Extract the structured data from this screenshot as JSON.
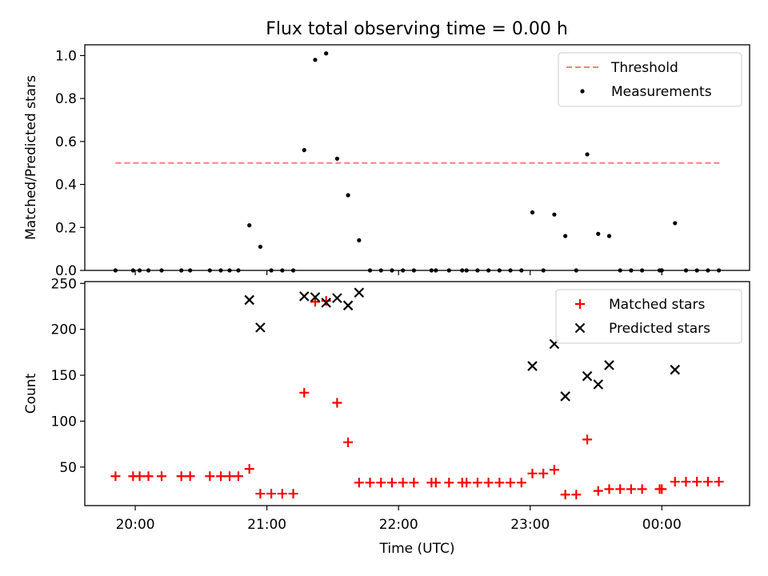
{
  "figure": {
    "title": "Flux total observing time = 0.00 h"
  },
  "chart_data": [
    {
      "type": "scatter",
      "ylabel": "Matched/Predicted stars",
      "xlabel": "",
      "xlim": [
        "19:37",
        "00:40"
      ],
      "ylim": [
        0,
        1.05
      ],
      "yticks": [
        0.0,
        0.2,
        0.4,
        0.6,
        0.8,
        1.0
      ],
      "ytick_labels": [
        "0.0",
        "0.2",
        "0.4",
        "0.6",
        "0.8",
        "1.0"
      ],
      "xticks": [
        "20:00",
        "21:00",
        "22:00",
        "23:00",
        "00:00"
      ],
      "grid": false,
      "legend_position": "upper right",
      "series": [
        {
          "name": "Threshold",
          "style": "dashed-line",
          "color": "#ff7f7f",
          "points": [
            [
              "19:51",
              0.5
            ],
            [
              "00:27",
              0.5
            ]
          ]
        },
        {
          "name": "Measurements",
          "style": "dot",
          "color": "#000000",
          "points": [
            [
              "19:51",
              0.0
            ],
            [
              "19:59",
              0.0
            ],
            [
              "20:02",
              0.0
            ],
            [
              "20:06",
              0.0
            ],
            [
              "20:12",
              0.0
            ],
            [
              "20:21",
              0.0
            ],
            [
              "20:25",
              0.0
            ],
            [
              "20:34",
              0.0
            ],
            [
              "20:39",
              0.0
            ],
            [
              "20:43",
              0.0
            ],
            [
              "20:47",
              0.0
            ],
            [
              "20:52",
              0.21
            ],
            [
              "20:57",
              0.11
            ],
            [
              "21:02",
              0.0
            ],
            [
              "21:07",
              0.0
            ],
            [
              "21:12",
              0.0
            ],
            [
              "21:17",
              0.56
            ],
            [
              "21:22",
              0.98
            ],
            [
              "21:27",
              1.01
            ],
            [
              "21:32",
              0.52
            ],
            [
              "21:37",
              0.35
            ],
            [
              "21:42",
              0.14
            ],
            [
              "21:47",
              0.0
            ],
            [
              "21:52",
              0.0
            ],
            [
              "21:57",
              0.0
            ],
            [
              "22:02",
              0.0
            ],
            [
              "22:07",
              0.0
            ],
            [
              "22:15",
              0.0
            ],
            [
              "22:17",
              0.0
            ],
            [
              "22:23",
              0.0
            ],
            [
              "22:29",
              0.0
            ],
            [
              "22:31",
              0.0
            ],
            [
              "22:36",
              0.0
            ],
            [
              "22:41",
              0.0
            ],
            [
              "22:46",
              0.0
            ],
            [
              "22:51",
              0.0
            ],
            [
              "22:56",
              0.0
            ],
            [
              "23:01",
              0.27
            ],
            [
              "23:06",
              0.0
            ],
            [
              "23:11",
              0.26
            ],
            [
              "23:16",
              0.16
            ],
            [
              "23:21",
              0.0
            ],
            [
              "23:26",
              0.54
            ],
            [
              "23:31",
              0.17
            ],
            [
              "23:36",
              0.16
            ],
            [
              "23:41",
              0.0
            ],
            [
              "23:46",
              0.0
            ],
            [
              "23:51",
              0.0
            ],
            [
              "23:59",
              0.0
            ],
            [
              "00:00",
              0.0
            ],
            [
              "00:06",
              0.22
            ],
            [
              "00:11",
              0.0
            ],
            [
              "00:16",
              0.0
            ],
            [
              "00:21",
              0.0
            ],
            [
              "00:26",
              0.0
            ]
          ]
        }
      ]
    },
    {
      "type": "scatter",
      "ylabel": "Count",
      "xlabel": "Time (UTC)",
      "xlim": [
        "19:37",
        "00:40"
      ],
      "ylim": [
        8,
        252
      ],
      "yticks": [
        50,
        100,
        150,
        200,
        250
      ],
      "ytick_labels": [
        "50",
        "100",
        "150",
        "200",
        "250"
      ],
      "xticks": [
        "20:00",
        "21:00",
        "22:00",
        "23:00",
        "00:00"
      ],
      "grid": false,
      "legend_position": "upper right",
      "series": [
        {
          "name": "Matched stars",
          "marker": "plus",
          "color": "#ff0000",
          "points": [
            [
              "19:51",
              40
            ],
            [
              "19:59",
              40
            ],
            [
              "20:02",
              40
            ],
            [
              "20:06",
              40
            ],
            [
              "20:12",
              40
            ],
            [
              "20:21",
              40
            ],
            [
              "20:25",
              40
            ],
            [
              "20:34",
              40
            ],
            [
              "20:39",
              40
            ],
            [
              "20:43",
              40
            ],
            [
              "20:47",
              40
            ],
            [
              "20:52",
              48
            ],
            [
              "20:57",
              21
            ],
            [
              "21:02",
              21
            ],
            [
              "21:07",
              21
            ],
            [
              "21:12",
              21
            ],
            [
              "21:17",
              131
            ],
            [
              "21:22",
              230
            ],
            [
              "21:27",
              231
            ],
            [
              "21:32",
              120
            ],
            [
              "21:37",
              77
            ],
            [
              "21:42",
              33
            ],
            [
              "21:47",
              33
            ],
            [
              "21:52",
              33
            ],
            [
              "21:57",
              33
            ],
            [
              "22:02",
              33
            ],
            [
              "22:07",
              33
            ],
            [
              "22:15",
              33
            ],
            [
              "22:17",
              33
            ],
            [
              "22:23",
              33
            ],
            [
              "22:29",
              33
            ],
            [
              "22:31",
              33
            ],
            [
              "22:36",
              33
            ],
            [
              "22:41",
              33
            ],
            [
              "22:46",
              33
            ],
            [
              "22:51",
              33
            ],
            [
              "22:56",
              33
            ],
            [
              "23:01",
              43
            ],
            [
              "23:06",
              43
            ],
            [
              "23:11",
              47
            ],
            [
              "23:16",
              20
            ],
            [
              "23:21",
              20
            ],
            [
              "23:26",
              80
            ],
            [
              "23:31",
              24
            ],
            [
              "23:36",
              26
            ],
            [
              "23:41",
              26
            ],
            [
              "23:46",
              26
            ],
            [
              "23:51",
              26
            ],
            [
              "23:59",
              26
            ],
            [
              "00:00",
              26
            ],
            [
              "00:06",
              34
            ],
            [
              "00:11",
              34
            ],
            [
              "00:16",
              34
            ],
            [
              "00:21",
              34
            ],
            [
              "00:26",
              34
            ]
          ]
        },
        {
          "name": "Predicted stars",
          "marker": "x",
          "color": "#000000",
          "points": [
            [
              "20:52",
              232
            ],
            [
              "20:57",
              202
            ],
            [
              "21:17",
              236
            ],
            [
              "21:22",
              235
            ],
            [
              "21:27",
              229
            ],
            [
              "21:32",
              234
            ],
            [
              "21:37",
              226
            ],
            [
              "21:42",
              240
            ],
            [
              "23:01",
              160
            ],
            [
              "23:11",
              184
            ],
            [
              "23:16",
              127
            ],
            [
              "23:26",
              149
            ],
            [
              "23:31",
              140
            ],
            [
              "23:36",
              161
            ],
            [
              "00:06",
              156
            ]
          ]
        }
      ]
    }
  ]
}
